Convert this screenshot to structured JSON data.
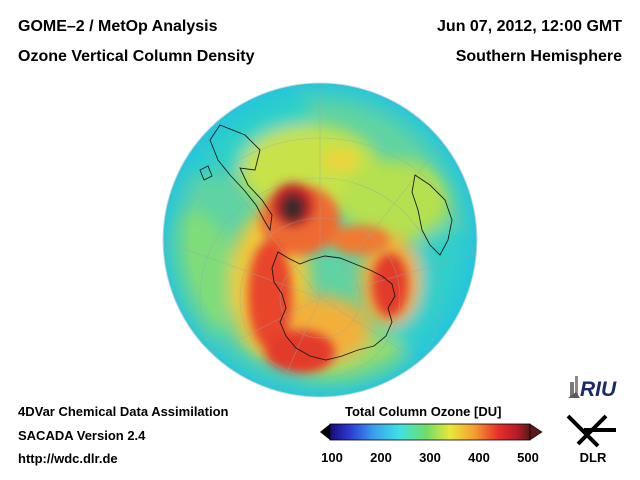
{
  "header": {
    "title_line1": "GOME–2 / MetOp Analysis",
    "title_line2": "Ozone Vertical Column Density",
    "datetime": "Jun 07, 2012, 12:00 GMT",
    "region": "Southern Hemisphere"
  },
  "footer": {
    "method": "4DVar Chemical Data Assimilation",
    "version": "SACADA Version 2.4",
    "url": "http://wdc.dlr.de"
  },
  "colorbar": {
    "title": "Total Column Ozone [DU]",
    "ticks": [
      "100",
      "200",
      "300",
      "400",
      "500"
    ],
    "min": 100,
    "max": 500
  },
  "logos": {
    "riu": "RIU",
    "dlr": "DLR"
  }
}
